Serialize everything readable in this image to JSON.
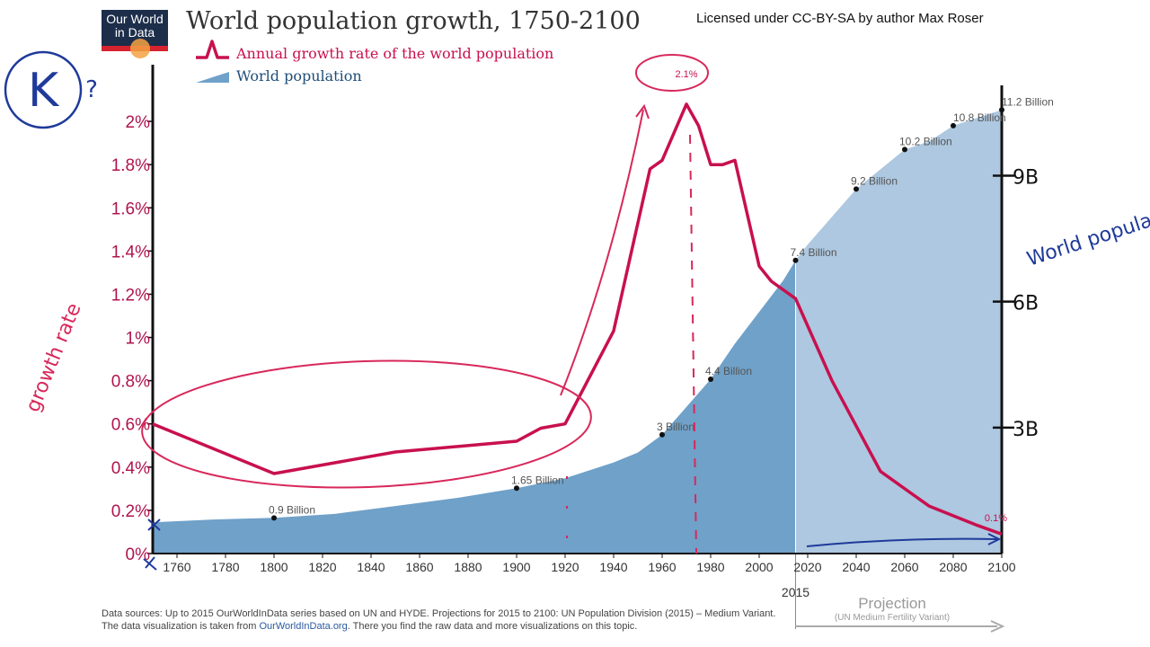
{
  "logo": {
    "line1": "Our World",
    "line2": "in Data"
  },
  "title": "World population growth, 1750-2100",
  "license": "Licensed under CC-BY-SA by author Max Roser",
  "legend": {
    "growth": "Annual growth rate of the world population",
    "population": "World population"
  },
  "footer": {
    "line1": "Data sources:  Up to 2015 OurWorldInData series based on UN and HYDE. Projections for 2015 to 2100: UN Population Division (2015) – Medium Variant.",
    "line2_pre": "The data visualization is taken from ",
    "line2_link": "OurWorldInData.org",
    "line2_post": ". There you find the raw data and more visualizations on this topic."
  },
  "annotations": {
    "projection_year": "2015",
    "projection_label": "Projection",
    "projection_sub": "(UN Medium Fertility Variant)",
    "peak_label": "2.1%",
    "end_label": "0.1%"
  },
  "handwriting": {
    "k_letter": "K",
    "question": "?",
    "growth_rate": "growth rate",
    "world_population": "World population",
    "tick_9b": "9B",
    "tick_6b": "6B",
    "tick_3b": "3B"
  },
  "colors": {
    "growth_line": "#c8104f",
    "population_fill_history": "#6fa1c9",
    "population_fill_projection": "#adc8e0",
    "axis_left_text": "#b0134d",
    "pen_red": "#d8285a",
    "pen_blue": "#1f3a9a"
  },
  "chart_data": {
    "type": "area",
    "title": "World population growth, 1750-2100",
    "x_ticks": [
      1760,
      1780,
      1800,
      1820,
      1840,
      1860,
      1880,
      1900,
      1920,
      1940,
      1960,
      1980,
      2000,
      2020,
      2040,
      2060,
      2080,
      2100
    ],
    "xlim": [
      1750,
      2100
    ],
    "y_left": {
      "ticks": [
        "0%",
        "0.2%",
        "0.4%",
        "0.6%",
        "0.8%",
        "1%",
        "1.2%",
        "1.4%",
        "1.6%",
        "1.8%",
        "2%"
      ],
      "ylim": [
        0,
        2.2
      ]
    },
    "y_right": {
      "ylim": [
        0,
        12
      ]
    },
    "projection_start": 2015,
    "series": [
      {
        "name": "Annual growth rate of the world population",
        "axis": "left",
        "x": [
          1750,
          1800,
          1850,
          1900,
          1910,
          1920,
          1940,
          1955,
          1960,
          1970,
          1975,
          1980,
          1985,
          1990,
          2000,
          2005,
          2015,
          2030,
          2050,
          2070,
          2090,
          2100
        ],
        "y": [
          0.6,
          0.37,
          0.47,
          0.52,
          0.58,
          0.6,
          1.03,
          1.78,
          1.82,
          2.08,
          1.98,
          1.8,
          1.8,
          1.82,
          1.33,
          1.26,
          1.18,
          0.8,
          0.38,
          0.22,
          0.13,
          0.09
        ]
      },
      {
        "name": "World population",
        "axis": "right",
        "x": [
          1750,
          1775,
          1800,
          1825,
          1850,
          1875,
          1900,
          1920,
          1940,
          1950,
          1960,
          1970,
          1980,
          1990,
          2000,
          2010,
          2015,
          2020,
          2030,
          2040,
          2050,
          2060,
          2070,
          2080,
          2090,
          2100
        ],
        "y": [
          0.79,
          0.86,
          0.9,
          1.0,
          1.2,
          1.4,
          1.65,
          1.9,
          2.3,
          2.55,
          3.0,
          3.7,
          4.4,
          5.3,
          6.1,
          6.9,
          7.4,
          7.8,
          8.5,
          9.2,
          9.7,
          10.2,
          10.4,
          10.8,
          11.0,
          11.2
        ]
      }
    ],
    "point_labels": [
      {
        "x": 1800,
        "y": 0.9,
        "label": "0.9 Billion"
      },
      {
        "x": 1900,
        "y": 1.65,
        "label": "1.65 Billion"
      },
      {
        "x": 1960,
        "y": 3.0,
        "label": "3 Billion"
      },
      {
        "x": 1980,
        "y": 4.4,
        "label": "4.4 Billion"
      },
      {
        "x": 2015,
        "y": 7.4,
        "label": "7.4 Billion"
      },
      {
        "x": 2040,
        "y": 9.2,
        "label": "9.2 Billion"
      },
      {
        "x": 2060,
        "y": 10.2,
        "label": "10.2 Billion"
      },
      {
        "x": 2080,
        "y": 10.8,
        "label": "10.8 Billion"
      },
      {
        "x": 2100,
        "y": 11.2,
        "label": "11.2 Billion"
      }
    ]
  }
}
